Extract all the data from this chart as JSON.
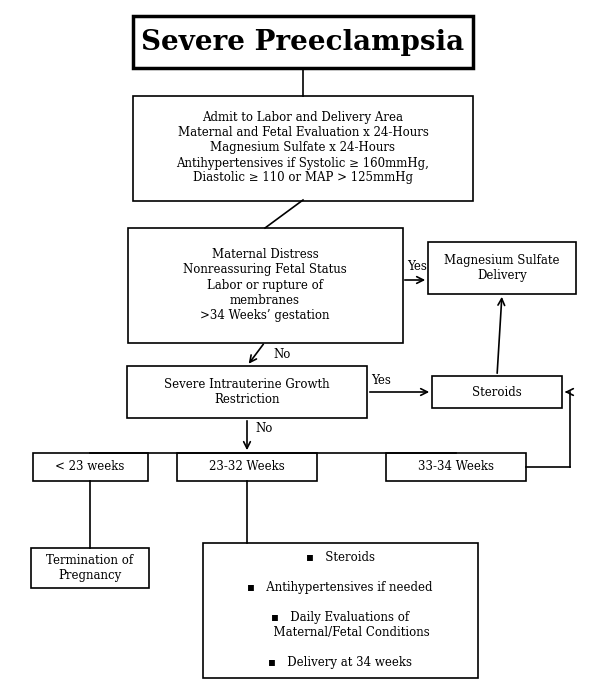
{
  "background_color": "#ffffff",
  "title_text": "Severe Preeclampsia",
  "admit_text": "Admit to Labor and Delivery Area\nMaternal and Fetal Evaluation x 24-Hours\nMagnesium Sulfate x 24-Hours\nAntihypertensives if Systolic ≥ 160mmHg,\nDiastolic ≥ 110 or MAP > 125mmHg",
  "maternal_text": "Maternal Distress\nNonreassuring Fetal Status\nLabor or rupture of\nmembranes\n>34 Weeks’ gestation",
  "mag_text": "Magnesium Sulfate\nDelivery",
  "growth_text": "Severe Intrauterine Growth\nRestriction",
  "steroids_text": "Steroids",
  "lt23_text": "< 23 weeks",
  "weeks2332_text": "23-32 Weeks",
  "weeks3334_text": "33-34 Weeks",
  "termination_text": "Termination of\nPregnancy",
  "management_text": "▪   Steroids\n\n▪   Antihypertensives if needed\n\n▪   Daily Evaluations of\n      Maternal/Fetal Conditions\n\n▪   Delivery at 34 weeks"
}
